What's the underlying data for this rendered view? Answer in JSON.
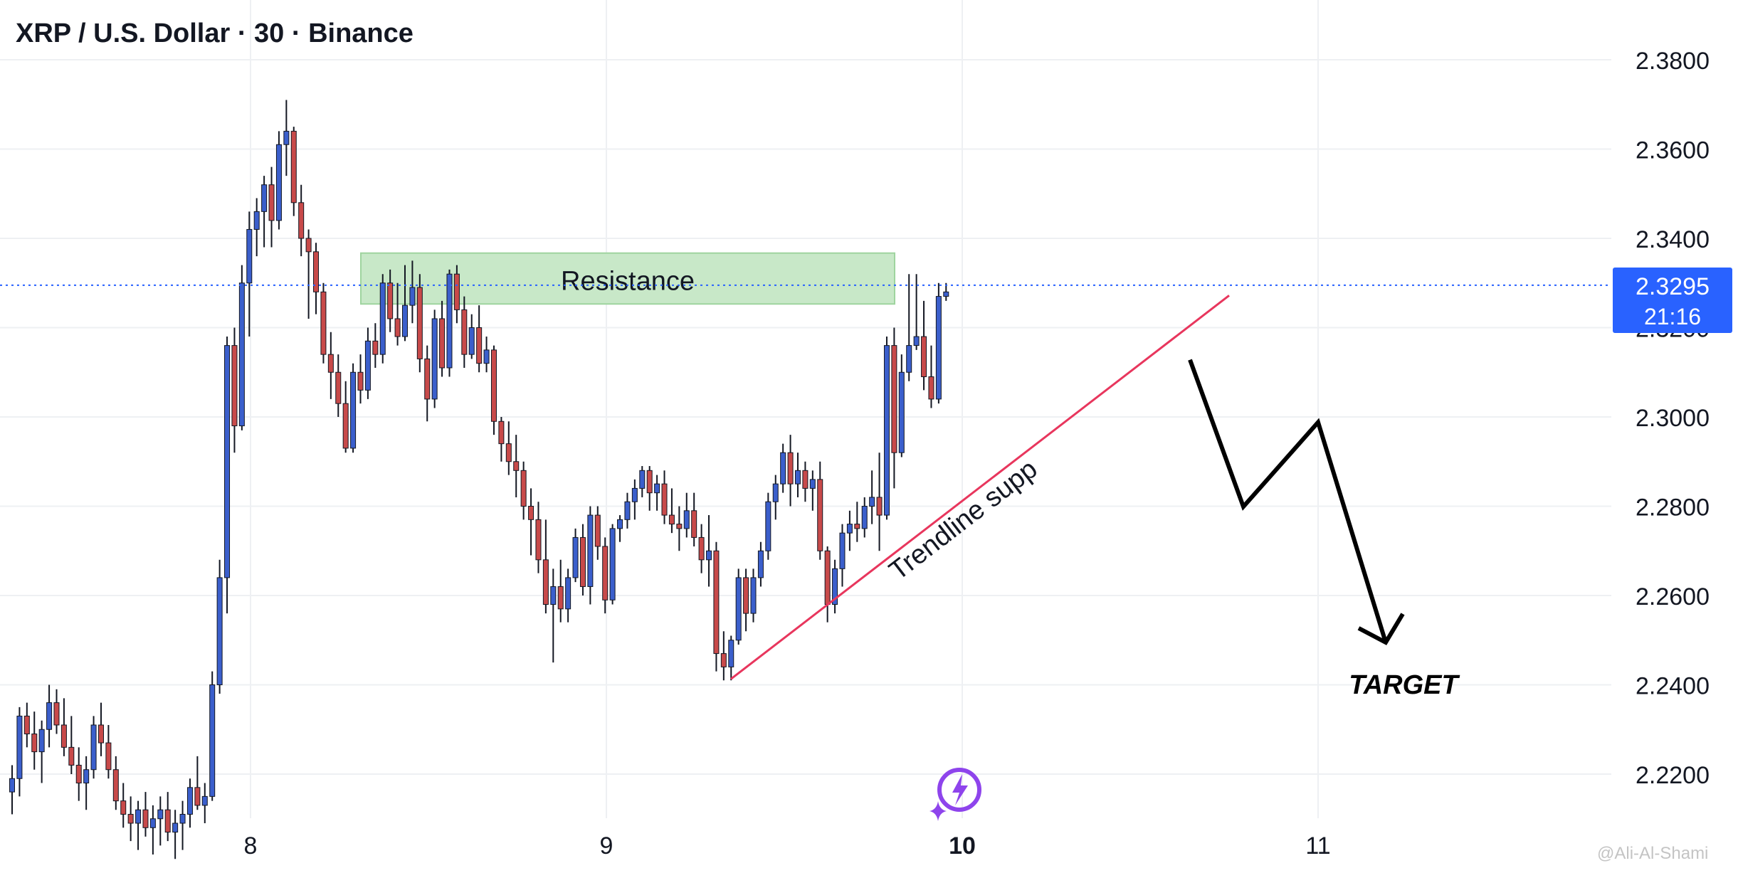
{
  "header": {
    "title": "XRP / U.S. Dollar · 30 · Binance"
  },
  "price_tag": {
    "price": "2.3295",
    "countdown": "21:16",
    "color": "#2962ff"
  },
  "watermark": "@Ali-Al-Shami",
  "annotations": {
    "resistance": "Resistance",
    "trendline": "Trendline supp",
    "target": "TARGET"
  },
  "colors": {
    "up": "#3b5fcc",
    "down": "#c84a4a",
    "zone": "#c8e8c8",
    "trendline": "#e8365d"
  },
  "chart_data": {
    "type": "candlestick",
    "title": "XRP / U.S. Dollar · 30 · Binance",
    "y_ticks": [
      "2.3800",
      "2.3600",
      "2.3400",
      "2.3200",
      "2.3000",
      "2.2800",
      "2.2600",
      "2.2400",
      "2.2200"
    ],
    "y_tick_values": [
      2.38,
      2.36,
      2.34,
      2.32,
      2.3,
      2.28,
      2.26,
      2.24,
      2.22
    ],
    "x_ticks": [
      {
        "label": "8",
        "day": 8
      },
      {
        "label": "9",
        "day": 9
      },
      {
        "label": "10",
        "day": 10,
        "bold": true
      },
      {
        "label": "11",
        "day": 11
      }
    ],
    "ylim": [
      2.2115,
      2.3912
    ],
    "xlim": [
      7.3,
      12.17
    ],
    "current_price": 2.3295,
    "candles_note": "30-minute OHLC, [open, high, low, close], starting day 7.33",
    "start_day": 7.33,
    "step_days": 0.02083,
    "candles": [
      [
        2.216,
        2.222,
        2.211,
        2.219
      ],
      [
        2.219,
        2.235,
        2.215,
        2.233
      ],
      [
        2.233,
        2.236,
        2.226,
        2.229
      ],
      [
        2.229,
        2.234,
        2.221,
        2.225
      ],
      [
        2.225,
        2.232,
        2.218,
        2.23
      ],
      [
        2.23,
        2.24,
        2.226,
        2.236
      ],
      [
        2.236,
        2.239,
        2.229,
        2.231
      ],
      [
        2.231,
        2.237,
        2.224,
        2.226
      ],
      [
        2.226,
        2.233,
        2.22,
        2.222
      ],
      [
        2.222,
        2.226,
        2.214,
        2.218
      ],
      [
        2.218,
        2.224,
        2.212,
        2.221
      ],
      [
        2.221,
        2.233,
        2.219,
        2.231
      ],
      [
        2.231,
        2.236,
        2.224,
        2.227
      ],
      [
        2.227,
        2.231,
        2.219,
        2.221
      ],
      [
        2.221,
        2.224,
        2.212,
        2.214
      ],
      [
        2.214,
        2.218,
        2.208,
        2.211
      ],
      [
        2.211,
        2.215,
        2.205,
        2.209
      ],
      [
        2.209,
        2.214,
        2.203,
        2.212
      ],
      [
        2.212,
        2.216,
        2.206,
        2.208
      ],
      [
        2.208,
        2.213,
        2.202,
        2.21
      ],
      [
        2.21,
        2.215,
        2.204,
        2.212
      ],
      [
        2.212,
        2.216,
        2.205,
        2.207
      ],
      [
        2.207,
        2.212,
        2.201,
        2.209
      ],
      [
        2.209,
        2.214,
        2.203,
        2.211
      ],
      [
        2.211,
        2.219,
        2.208,
        2.217
      ],
      [
        2.217,
        2.224,
        2.212,
        2.213
      ],
      [
        2.213,
        2.218,
        2.209,
        2.215
      ],
      [
        2.215,
        2.243,
        2.214,
        2.24
      ],
      [
        2.24,
        2.268,
        2.238,
        2.264
      ],
      [
        2.264,
        2.318,
        2.256,
        2.316
      ],
      [
        2.316,
        2.32,
        2.292,
        2.298
      ],
      [
        2.298,
        2.334,
        2.297,
        2.33
      ],
      [
        2.33,
        2.346,
        2.318,
        2.342
      ],
      [
        2.342,
        2.349,
        2.336,
        2.346
      ],
      [
        2.346,
        2.354,
        2.338,
        2.352
      ],
      [
        2.352,
        2.356,
        2.338,
        2.344
      ],
      [
        2.344,
        2.364,
        2.342,
        2.361
      ],
      [
        2.361,
        2.371,
        2.354,
        2.364
      ],
      [
        2.364,
        2.365,
        2.345,
        2.348
      ],
      [
        2.348,
        2.352,
        2.336,
        2.34
      ],
      [
        2.34,
        2.342,
        2.322,
        2.337
      ],
      [
        2.337,
        2.339,
        2.323,
        2.328
      ],
      [
        2.328,
        2.33,
        2.312,
        2.314
      ],
      [
        2.314,
        2.319,
        2.304,
        2.31
      ],
      [
        2.31,
        2.314,
        2.3,
        2.303
      ],
      [
        2.303,
        2.308,
        2.292,
        2.293
      ],
      [
        2.293,
        2.312,
        2.292,
        2.31
      ],
      [
        2.31,
        2.314,
        2.303,
        2.306
      ],
      [
        2.306,
        2.32,
        2.304,
        2.317
      ],
      [
        2.317,
        2.321,
        2.311,
        2.314
      ],
      [
        2.314,
        2.332,
        2.312,
        2.33
      ],
      [
        2.33,
        2.333,
        2.319,
        2.322
      ],
      [
        2.322,
        2.33,
        2.316,
        2.318
      ],
      [
        2.318,
        2.334,
        2.317,
        2.325
      ],
      [
        2.325,
        2.335,
        2.321,
        2.329
      ],
      [
        2.329,
        2.332,
        2.31,
        2.313
      ],
      [
        2.313,
        2.316,
        2.299,
        2.304
      ],
      [
        2.304,
        2.324,
        2.302,
        2.322
      ],
      [
        2.322,
        2.326,
        2.309,
        2.311
      ],
      [
        2.311,
        2.333,
        2.309,
        2.332
      ],
      [
        2.332,
        2.334,
        2.321,
        2.324
      ],
      [
        2.324,
        2.327,
        2.311,
        2.314
      ],
      [
        2.314,
        2.323,
        2.313,
        2.32
      ],
      [
        2.32,
        2.325,
        2.31,
        2.312
      ],
      [
        2.312,
        2.318,
        2.31,
        2.315
      ],
      [
        2.315,
        2.316,
        2.296,
        2.299
      ],
      [
        2.299,
        2.3,
        2.29,
        2.294
      ],
      [
        2.294,
        2.299,
        2.287,
        2.29
      ],
      [
        2.29,
        2.296,
        2.282,
        2.288
      ],
      [
        2.288,
        2.29,
        2.277,
        2.28
      ],
      [
        2.28,
        2.284,
        2.269,
        2.277
      ],
      [
        2.277,
        2.281,
        2.265,
        2.268
      ],
      [
        2.268,
        2.277,
        2.256,
        2.258
      ],
      [
        2.258,
        2.266,
        2.245,
        2.262
      ],
      [
        2.262,
        2.268,
        2.254,
        2.257
      ],
      [
        2.257,
        2.266,
        2.254,
        2.264
      ],
      [
        2.264,
        2.275,
        2.263,
        2.273
      ],
      [
        2.273,
        2.276,
        2.26,
        2.262
      ],
      [
        2.262,
        2.28,
        2.258,
        2.278
      ],
      [
        2.278,
        2.28,
        2.268,
        2.271
      ],
      [
        2.271,
        2.273,
        2.256,
        2.259
      ],
      [
        2.259,
        2.276,
        2.258,
        2.275
      ],
      [
        2.275,
        2.278,
        2.272,
        2.277
      ],
      [
        2.277,
        2.283,
        2.275,
        2.281
      ],
      [
        2.281,
        2.286,
        2.277,
        2.284
      ],
      [
        2.284,
        2.289,
        2.282,
        2.288
      ],
      [
        2.288,
        2.289,
        2.279,
        2.283
      ],
      [
        2.283,
        2.287,
        2.279,
        2.285
      ],
      [
        2.285,
        2.288,
        2.276,
        2.278
      ],
      [
        2.278,
        2.284,
        2.274,
        2.276
      ],
      [
        2.276,
        2.28,
        2.27,
        2.275
      ],
      [
        2.275,
        2.283,
        2.273,
        2.279
      ],
      [
        2.279,
        2.283,
        2.271,
        2.273
      ],
      [
        2.273,
        2.276,
        2.265,
        2.268
      ],
      [
        2.268,
        2.278,
        2.262,
        2.27
      ],
      [
        2.27,
        2.272,
        2.243,
        2.247
      ],
      [
        2.247,
        2.252,
        2.241,
        2.244
      ],
      [
        2.244,
        2.251,
        2.241,
        2.25
      ],
      [
        2.25,
        2.266,
        2.249,
        2.264
      ],
      [
        2.264,
        2.266,
        2.252,
        2.256
      ],
      [
        2.256,
        2.266,
        2.254,
        2.264
      ],
      [
        2.264,
        2.272,
        2.262,
        2.27
      ],
      [
        2.27,
        2.283,
        2.268,
        2.281
      ],
      [
        2.281,
        2.287,
        2.277,
        2.285
      ],
      [
        2.285,
        2.294,
        2.283,
        2.292
      ],
      [
        2.292,
        2.296,
        2.28,
        2.285
      ],
      [
        2.285,
        2.292,
        2.282,
        2.288
      ],
      [
        2.288,
        2.29,
        2.281,
        2.284
      ],
      [
        2.284,
        2.288,
        2.279,
        2.286
      ],
      [
        2.286,
        2.29,
        2.268,
        2.27
      ],
      [
        2.27,
        2.271,
        2.254,
        2.258
      ],
      [
        2.258,
        2.268,
        2.256,
        2.266
      ],
      [
        2.266,
        2.276,
        2.262,
        2.274
      ],
      [
        2.274,
        2.279,
        2.27,
        2.276
      ],
      [
        2.276,
        2.281,
        2.272,
        2.275
      ],
      [
        2.275,
        2.282,
        2.273,
        2.28
      ],
      [
        2.28,
        2.288,
        2.276,
        2.282
      ],
      [
        2.282,
        2.292,
        2.27,
        2.278
      ],
      [
        2.278,
        2.318,
        2.277,
        2.316
      ],
      [
        2.316,
        2.32,
        2.284,
        2.292
      ],
      [
        2.292,
        2.314,
        2.291,
        2.31
      ],
      [
        2.31,
        2.332,
        2.308,
        2.316
      ],
      [
        2.316,
        2.332,
        2.315,
        2.318
      ],
      [
        2.318,
        2.326,
        2.306,
        2.309
      ],
      [
        2.309,
        2.316,
        2.302,
        2.304
      ],
      [
        2.304,
        2.33,
        2.303,
        2.327
      ],
      [
        2.327,
        2.33,
        2.326,
        2.328
      ]
    ]
  }
}
